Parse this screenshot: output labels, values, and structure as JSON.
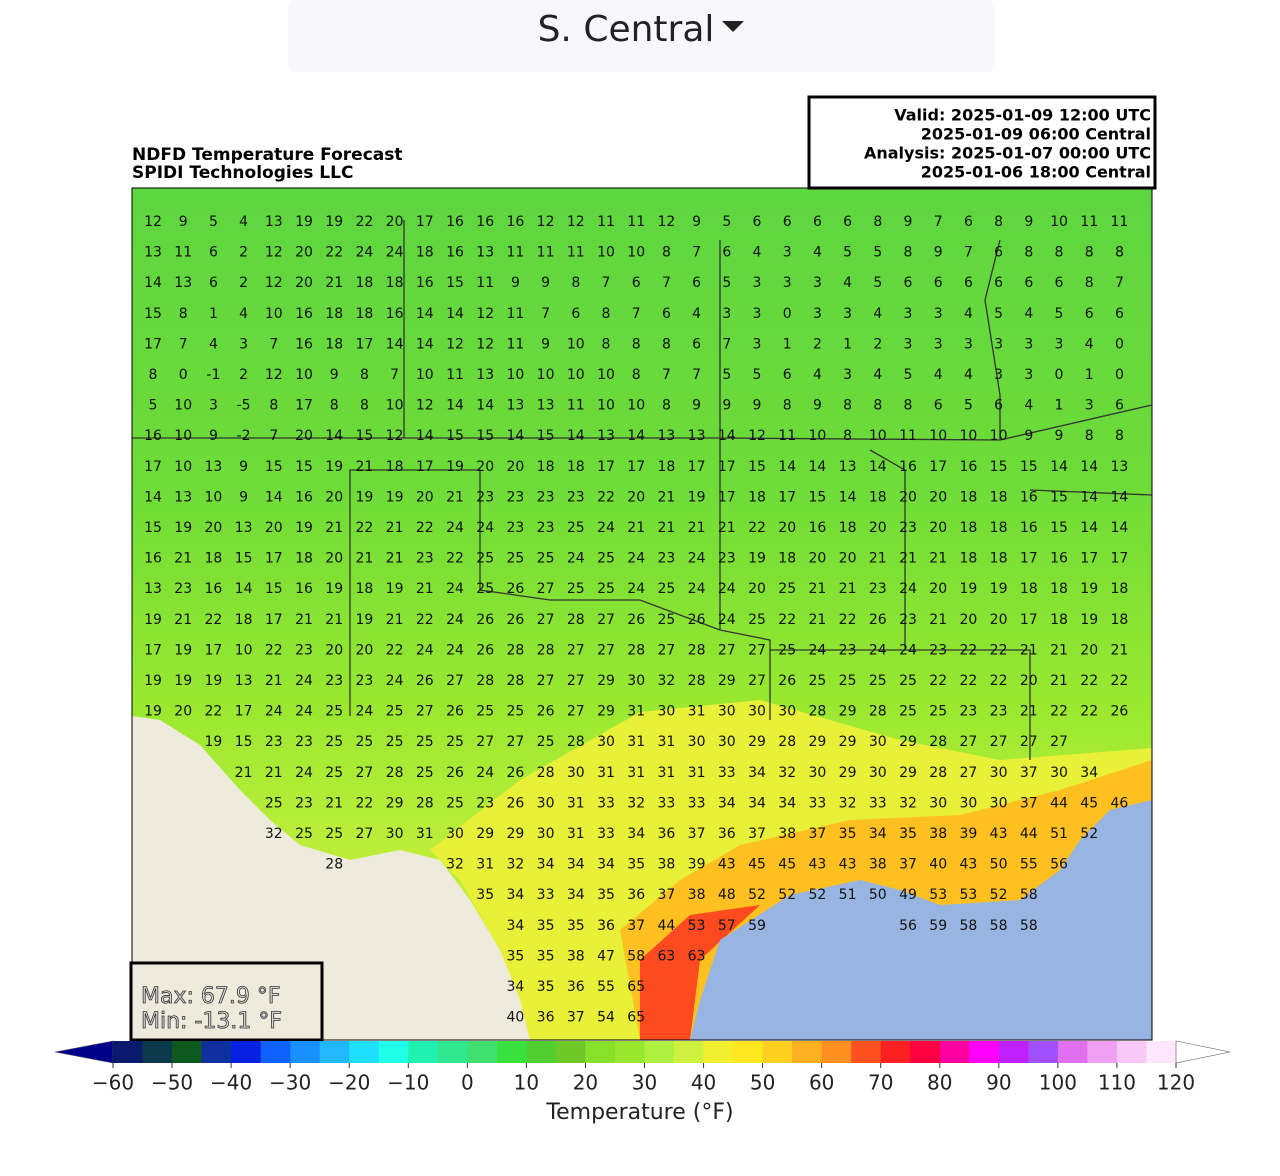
{
  "header": {
    "region": "S. Central"
  },
  "map": {
    "type": "map",
    "info": [
      "Valid: 2025-01-09 12:00 UTC",
      "2025-01-09 06:00 Central",
      "Analysis: 2025-01-07 00:00 UTC",
      "2025-01-06 18:00 Central"
    ],
    "title": [
      "NDFD Temperature Forecast",
      "SPIDI Technologies LLC"
    ],
    "stats": [
      "Max: 67.9 °F",
      "Min: -13.1 °F"
    ],
    "labels": [
      [
        12,
        9,
        5,
        4,
        13,
        19,
        19,
        22,
        20,
        17,
        16,
        16,
        16,
        12,
        12,
        11,
        11,
        12,
        9,
        5,
        6,
        6,
        6,
        6,
        8,
        9,
        7,
        6,
        8,
        9,
        10,
        11,
        11
      ],
      [
        13,
        11,
        6,
        2,
        12,
        20,
        22,
        24,
        24,
        18,
        16,
        13,
        11,
        11,
        11,
        10,
        10,
        8,
        7,
        6,
        4,
        3,
        4,
        5,
        5,
        8,
        9,
        7,
        6,
        8,
        8,
        8,
        8
      ],
      [
        14,
        13,
        6,
        2,
        12,
        20,
        21,
        18,
        18,
        16,
        15,
        11,
        9,
        9,
        8,
        7,
        6,
        7,
        6,
        5,
        3,
        3,
        3,
        4,
        5,
        6,
        6,
        6,
        6,
        6,
        6,
        8,
        7
      ],
      [
        15,
        8,
        1,
        4,
        10,
        16,
        18,
        18,
        16,
        14,
        14,
        12,
        11,
        7,
        6,
        8,
        7,
        6,
        4,
        3,
        3,
        0,
        3,
        3,
        4,
        3,
        3,
        4,
        5,
        4,
        5,
        6,
        6
      ],
      [
        17,
        7,
        4,
        3,
        7,
        16,
        18,
        17,
        14,
        14,
        12,
        12,
        11,
        9,
        10,
        8,
        8,
        8,
        6,
        7,
        3,
        1,
        2,
        1,
        2,
        3,
        3,
        3,
        3,
        3,
        3,
        4,
        0
      ],
      [
        8,
        0,
        -1,
        2,
        12,
        10,
        9,
        8,
        7,
        10,
        11,
        13,
        10,
        10,
        10,
        10,
        8,
        7,
        7,
        5,
        5,
        6,
        4,
        3,
        4,
        5,
        4,
        4,
        3,
        3,
        0,
        1,
        0
      ],
      [
        5,
        10,
        3,
        -5,
        8,
        17,
        8,
        8,
        10,
        12,
        14,
        14,
        13,
        13,
        11,
        10,
        10,
        8,
        9,
        9,
        9,
        8,
        9,
        8,
        8,
        8,
        6,
        5,
        6,
        4,
        1,
        3,
        6
      ],
      [
        16,
        10,
        9,
        -2,
        7,
        20,
        14,
        15,
        12,
        14,
        15,
        15,
        14,
        15,
        14,
        13,
        14,
        13,
        13,
        14,
        12,
        11,
        10,
        8,
        10,
        11,
        10,
        10,
        10,
        9,
        9,
        8,
        8
      ],
      [
        17,
        10,
        13,
        9,
        15,
        15,
        19,
        21,
        18,
        17,
        19,
        20,
        20,
        18,
        18,
        17,
        17,
        18,
        17,
        17,
        15,
        14,
        14,
        13,
        14,
        16,
        17,
        16,
        15,
        15,
        14,
        14,
        13
      ],
      [
        14,
        13,
        10,
        9,
        14,
        16,
        20,
        19,
        19,
        20,
        21,
        23,
        23,
        23,
        23,
        22,
        20,
        21,
        19,
        17,
        18,
        17,
        15,
        14,
        18,
        20,
        20,
        18,
        18,
        16,
        15,
        14,
        14
      ],
      [
        15,
        19,
        20,
        13,
        20,
        19,
        21,
        22,
        21,
        22,
        24,
        24,
        23,
        23,
        25,
        24,
        21,
        21,
        21,
        21,
        22,
        20,
        16,
        18,
        20,
        23,
        20,
        18,
        18,
        16,
        15,
        14,
        14
      ],
      [
        16,
        21,
        18,
        15,
        17,
        18,
        20,
        21,
        21,
        23,
        22,
        25,
        25,
        25,
        24,
        25,
        24,
        23,
        24,
        23,
        19,
        18,
        20,
        20,
        21,
        21,
        21,
        18,
        18,
        17,
        16,
        17,
        17
      ],
      [
        13,
        23,
        16,
        14,
        15,
        16,
        19,
        18,
        19,
        21,
        24,
        25,
        26,
        27,
        25,
        25,
        24,
        25,
        24,
        24,
        20,
        25,
        21,
        21,
        23,
        24,
        20,
        19,
        19,
        18,
        18,
        19,
        18
      ],
      [
        19,
        21,
        22,
        18,
        17,
        21,
        21,
        19,
        21,
        22,
        24,
        26,
        26,
        27,
        28,
        27,
        26,
        25,
        26,
        24,
        25,
        22,
        21,
        22,
        26,
        23,
        21,
        20,
        20,
        17,
        18,
        19,
        18
      ],
      [
        17,
        19,
        17,
        10,
        22,
        23,
        20,
        20,
        22,
        24,
        24,
        26,
        28,
        28,
        27,
        27,
        28,
        27,
        28,
        27,
        27,
        25,
        24,
        23,
        24,
        24,
        23,
        22,
        22,
        21,
        21,
        20,
        21
      ],
      [
        19,
        19,
        19,
        13,
        21,
        24,
        23,
        23,
        24,
        26,
        27,
        28,
        28,
        27,
        27,
        29,
        30,
        32,
        28,
        29,
        27,
        26,
        25,
        25,
        25,
        25,
        22,
        22,
        22,
        20,
        21,
        22,
        22
      ],
      [
        19,
        20,
        22,
        17,
        24,
        24,
        25,
        24,
        25,
        27,
        26,
        25,
        25,
        26,
        27,
        29,
        31,
        30,
        31,
        30,
        30,
        30,
        28,
        29,
        28,
        25,
        25,
        23,
        23,
        21,
        22,
        22,
        26
      ],
      [
        null,
        null,
        19,
        15,
        23,
        23,
        25,
        25,
        25,
        25,
        25,
        27,
        27,
        25,
        28,
        30,
        31,
        31,
        30,
        30,
        29,
        28,
        29,
        29,
        30,
        29,
        28,
        27,
        27,
        27,
        27
      ],
      [
        null,
        null,
        null,
        21,
        21,
        24,
        25,
        27,
        28,
        25,
        26,
        24,
        26,
        28,
        30,
        31,
        31,
        31,
        31,
        33,
        34,
        32,
        30,
        29,
        30,
        29,
        28,
        27,
        30,
        37,
        30,
        34
      ],
      [
        null,
        null,
        null,
        null,
        25,
        23,
        21,
        22,
        29,
        28,
        25,
        23,
        26,
        30,
        31,
        33,
        32,
        33,
        33,
        34,
        34,
        34,
        33,
        32,
        33,
        32,
        30,
        30,
        30,
        37,
        44,
        45,
        46
      ],
      [
        null,
        null,
        null,
        null,
        32,
        25,
        25,
        27,
        30,
        31,
        30,
        29,
        29,
        30,
        31,
        33,
        34,
        36,
        37,
        36,
        37,
        38,
        37,
        35,
        34,
        35,
        38,
        39,
        43,
        44,
        51,
        52
      ],
      [
        null,
        null,
        null,
        null,
        null,
        null,
        28,
        null,
        null,
        null,
        32,
        31,
        32,
        34,
        34,
        34,
        35,
        38,
        39,
        43,
        45,
        45,
        43,
        43,
        38,
        37,
        40,
        43,
        50,
        55,
        56
      ],
      [
        null,
        null,
        null,
        null,
        null,
        null,
        null,
        null,
        null,
        null,
        null,
        35,
        34,
        33,
        34,
        35,
        36,
        37,
        38,
        48,
        52,
        52,
        52,
        51,
        50,
        49,
        53,
        53,
        52,
        58
      ],
      [
        null,
        null,
        null,
        null,
        null,
        null,
        null,
        null,
        null,
        null,
        null,
        null,
        34,
        35,
        35,
        36,
        37,
        44,
        53,
        57,
        59,
        null,
        null,
        null,
        null,
        56,
        59,
        58,
        58,
        58
      ],
      [
        null,
        null,
        null,
        null,
        null,
        null,
        null,
        null,
        null,
        null,
        null,
        null,
        35,
        35,
        38,
        47,
        58,
        63,
        63
      ],
      [
        null,
        null,
        null,
        null,
        null,
        null,
        null,
        null,
        null,
        null,
        null,
        null,
        34,
        35,
        36,
        55,
        65
      ],
      [
        null,
        null,
        null,
        null,
        null,
        null,
        null,
        null,
        null,
        null,
        null,
        null,
        40,
        36,
        37,
        54,
        65
      ]
    ],
    "colorbar": {
      "label": "Temperature (°F)",
      "lim": [
        -60,
        120
      ],
      "ticks": [
        {
          "value": -60,
          "label": "−60"
        },
        {
          "value": -50,
          "label": "−50"
        },
        {
          "value": -40,
          "label": "−40"
        },
        {
          "value": -30,
          "label": "−30"
        },
        {
          "value": -20,
          "label": "−20"
        },
        {
          "value": -10,
          "label": "−10"
        },
        0,
        10,
        20,
        30,
        40,
        50,
        60,
        70,
        80,
        90,
        100,
        110,
        120
      ],
      "under_color": "#00008b",
      "over_color": "#ffffff",
      "colors": [
        "#0a1a6e",
        "#0a3a4a",
        "#0e5a1e",
        "#1030a0",
        "#0a20e0",
        "#1060ff",
        "#1890ff",
        "#20b8ff",
        "#20e0ff",
        "#20ffe8",
        "#20f0b0",
        "#30e890",
        "#40e070",
        "#38e040",
        "#50d030",
        "#70c828",
        "#88e028",
        "#98e830",
        "#b0f040",
        "#d0f040",
        "#f0f030",
        "#ffe820",
        "#ffd020",
        "#ffb020",
        "#ff9020",
        "#ff5020",
        "#ff2020",
        "#ff0040",
        "#ff00a0",
        "#ff00ff",
        "#c020ff",
        "#a050ff",
        "#e070f0",
        "#f0a0f0",
        "#f8c8f8",
        "#ffe8ff"
      ]
    }
  }
}
